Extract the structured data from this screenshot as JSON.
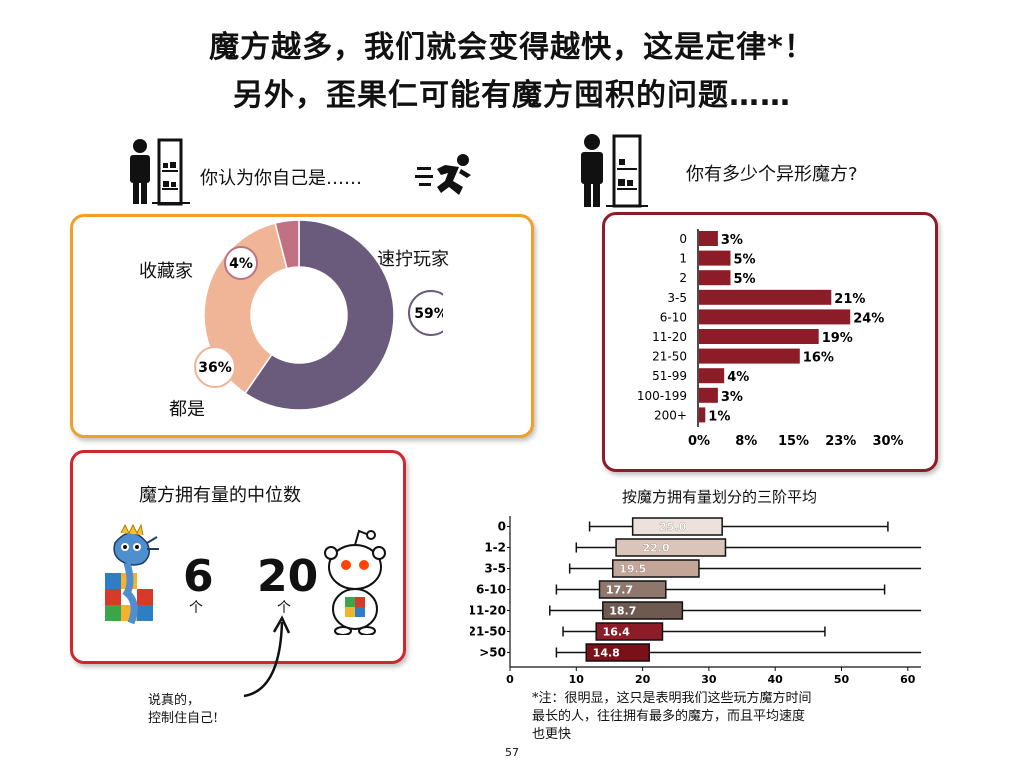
{
  "title": {
    "line1": "魔方越多，我们就会变得越快，这是定律*！",
    "line2": "另外，歪果仁可能有魔方囤积的问题……"
  },
  "q1": {
    "question": "你认为你自己是……",
    "labels": {
      "collector": "收藏家",
      "speedcuber": "速拧玩家",
      "both": "都是"
    }
  },
  "q2": {
    "question": "你有多少个异形魔方?"
  },
  "median": {
    "title": "魔方拥有量的中位数",
    "values": [
      {
        "value": "6",
        "unit": "个"
      },
      {
        "value": "20",
        "unit": "个"
      }
    ],
    "handwritten_note": [
      "说真的，",
      "控制住自己!"
    ]
  },
  "tertile": {
    "title": "按魔方拥有量划分的三阶平均"
  },
  "footnote": [
    "*注：很明显，这只是表明我们这些玩方魔方时间",
    "最长的人，往往拥有最多的魔方，而且平均速度",
    "也更快"
  ],
  "page_number": "57",
  "colors": {
    "donut_speed": "#6a5a7c",
    "donut_both": "#f0b496",
    "donut_collector": "#c07283",
    "bar_red": "#8c1d28",
    "orange": "#f0a024"
  },
  "chart_data": [
    {
      "type": "pie",
      "variant": "donut",
      "slices": [
        {
          "name": "速拧玩家",
          "value": 59,
          "label": "59%"
        },
        {
          "name": "都是",
          "value": 36,
          "label": "36%"
        },
        {
          "name": "收藏家",
          "value": 4,
          "label": "4%"
        }
      ]
    },
    {
      "type": "bar",
      "orientation": "horizontal",
      "categories": [
        "0",
        "1",
        "2",
        "3-5",
        "6-10",
        "11-20",
        "21-50",
        "51-99",
        "100-199",
        "200+"
      ],
      "values": [
        3,
        5,
        5,
        21,
        24,
        19,
        16,
        4,
        3,
        1
      ],
      "value_labels": [
        "3%",
        "5%",
        "5%",
        "21%",
        "24%",
        "19%",
        "16%",
        "4%",
        "3%",
        "1%"
      ],
      "xticks": [
        "0%",
        "8%",
        "15%",
        "23%",
        "30%"
      ],
      "xlim": [
        0,
        30
      ]
    },
    {
      "type": "box",
      "title": "按魔方拥有量划分的三阶平均",
      "categories": [
        "0",
        "1-2",
        "3-5",
        "6-10",
        "11-20",
        "21-50",
        ">50"
      ],
      "boxes": [
        {
          "low": 12,
          "q1": 18.5,
          "q3": 32,
          "high": 57,
          "label": "25.0"
        },
        {
          "low": 10,
          "q1": 16,
          "q3": 32.5,
          "high": 62,
          "label": "22.0"
        },
        {
          "low": 9,
          "q1": 15.5,
          "q3": 28.5,
          "high": 62,
          "label": "19.5"
        },
        {
          "low": 7,
          "q1": 13.5,
          "q3": 23.5,
          "high": 56.5,
          "label": "17.7"
        },
        {
          "low": 6,
          "q1": 14,
          "q3": 26,
          "high": 62,
          "label": "18.7"
        },
        {
          "low": 8,
          "q1": 13,
          "q3": 23,
          "high": 47.5,
          "label": "16.4"
        },
        {
          "low": 7,
          "q1": 11.5,
          "q3": 21,
          "high": 62,
          "label": "14.8"
        }
      ],
      "box_colors": [
        "#ece2db",
        "#d9c5b9",
        "#c3a698",
        "#8f776d",
        "#6f5a52",
        "#8c1d28",
        "#7a1018"
      ],
      "xticks": [
        0,
        10,
        20,
        30,
        40,
        50,
        60
      ],
      "xlim": [
        0,
        62
      ]
    }
  ]
}
